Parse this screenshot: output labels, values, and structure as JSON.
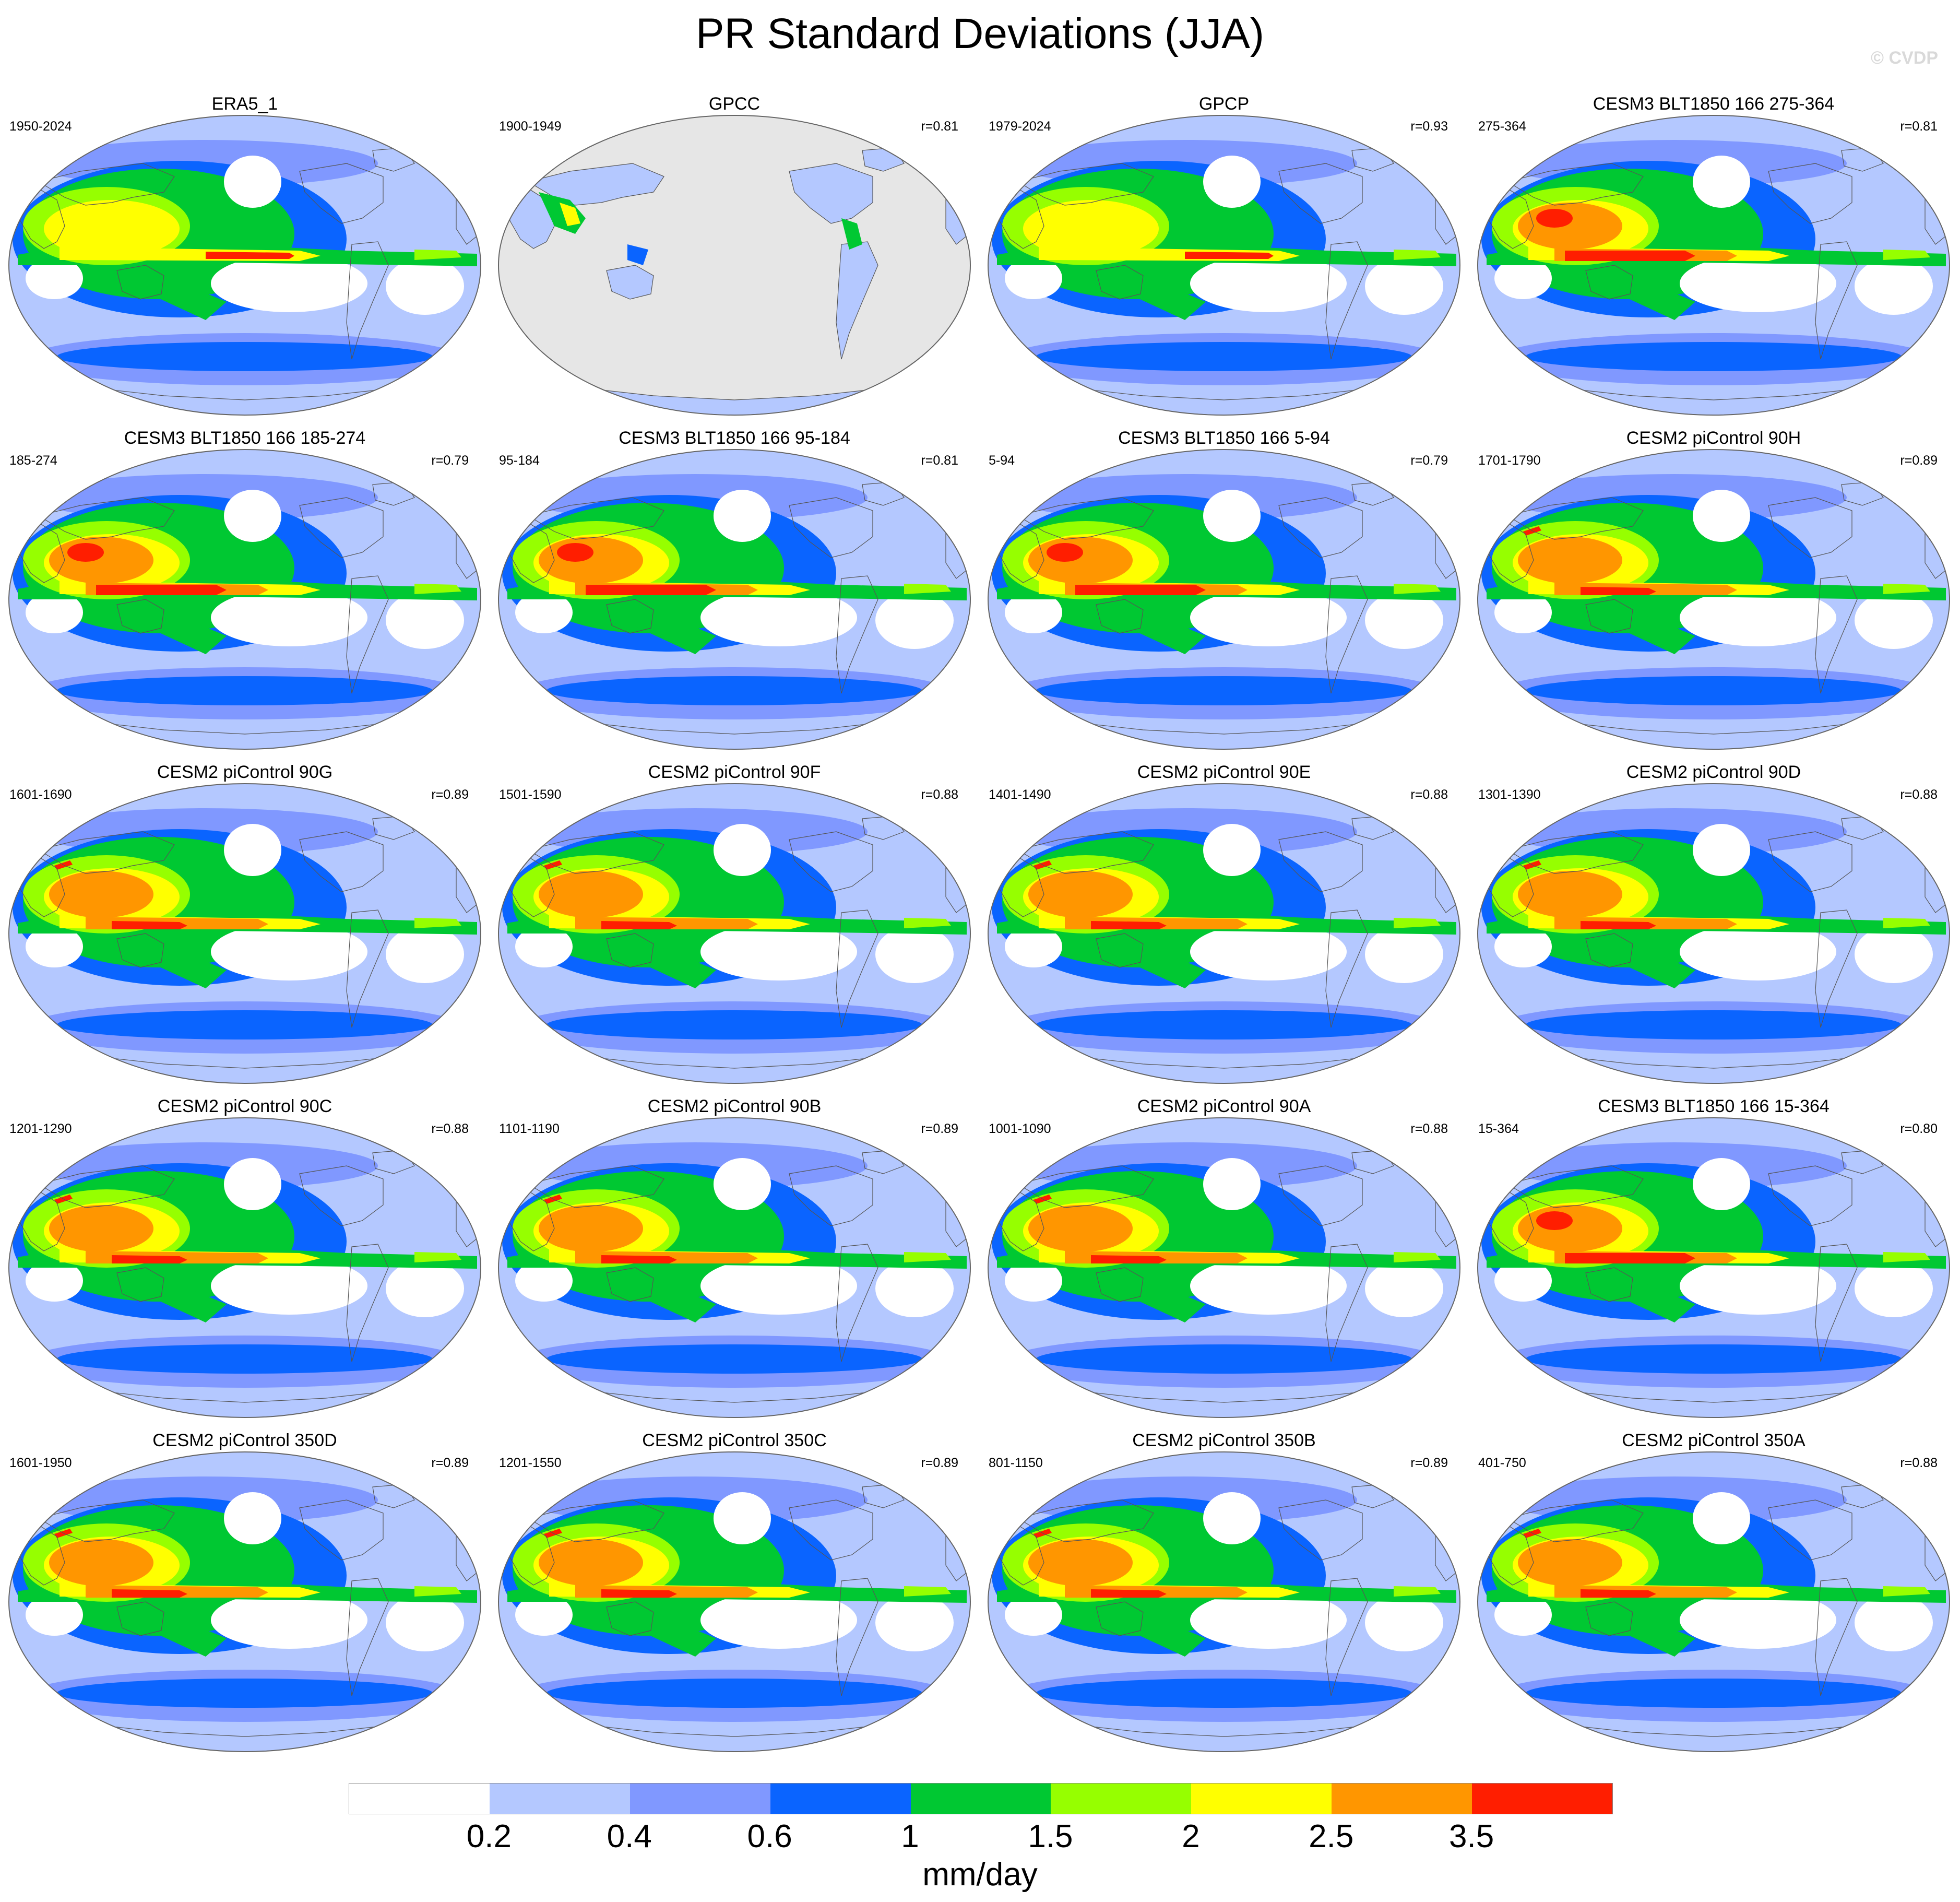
{
  "title": "PR Standard Deviations (JJA)",
  "watermark": "© CVDP",
  "panels": [
    {
      "title": "ERA5_1",
      "years": "1950-2024",
      "r": "",
      "kind": "obs"
    },
    {
      "title": "GPCC",
      "years": "1900-1949",
      "r": "r=0.81",
      "kind": "land"
    },
    {
      "title": "GPCP",
      "years": "1979-2024",
      "r": "r=0.93",
      "kind": "obs"
    },
    {
      "title": "CESM3 BLT1850 166 275-364",
      "years": "275-364",
      "r": "r=0.81",
      "kind": "model3"
    },
    {
      "title": "CESM3 BLT1850 166 185-274",
      "years": "185-274",
      "r": "r=0.79",
      "kind": "model3"
    },
    {
      "title": "CESM3 BLT1850 166 95-184",
      "years": "95-184",
      "r": "r=0.81",
      "kind": "model3"
    },
    {
      "title": "CESM3 BLT1850 166 5-94",
      "years": "5-94",
      "r": "r=0.79",
      "kind": "model3"
    },
    {
      "title": "CESM2 piControl 90H",
      "years": "1701-1790",
      "r": "r=0.89",
      "kind": "model2"
    },
    {
      "title": "CESM2 piControl 90G",
      "years": "1601-1690",
      "r": "r=0.89",
      "kind": "model2"
    },
    {
      "title": "CESM2 piControl 90F",
      "years": "1501-1590",
      "r": "r=0.88",
      "kind": "model2"
    },
    {
      "title": "CESM2 piControl 90E",
      "years": "1401-1490",
      "r": "r=0.88",
      "kind": "model2"
    },
    {
      "title": "CESM2 piControl 90D",
      "years": "1301-1390",
      "r": "r=0.88",
      "kind": "model2"
    },
    {
      "title": "CESM2 piControl 90C",
      "years": "1201-1290",
      "r": "r=0.88",
      "kind": "model2"
    },
    {
      "title": "CESM2 piControl 90B",
      "years": "1101-1190",
      "r": "r=0.89",
      "kind": "model2"
    },
    {
      "title": "CESM2 piControl 90A",
      "years": "1001-1090",
      "r": "r=0.88",
      "kind": "model2"
    },
    {
      "title": "CESM3 BLT1850 166 15-364",
      "years": "15-364",
      "r": "r=0.80",
      "kind": "model3"
    },
    {
      "title": "CESM2 piControl 350D",
      "years": "1601-1950",
      "r": "r=0.89",
      "kind": "model2"
    },
    {
      "title": "CESM2 piControl 350C",
      "years": "1201-1550",
      "r": "r=0.89",
      "kind": "model2"
    },
    {
      "title": "CESM2 piControl 350B",
      "years": "801-1150",
      "r": "r=0.89",
      "kind": "model2"
    },
    {
      "title": "CESM2 piControl 350A",
      "years": "401-750",
      "r": "r=0.88",
      "kind": "model2"
    }
  ],
  "colorbar": {
    "colors": [
      "#ffffff",
      "#b4c8ff",
      "#8098ff",
      "#0a64ff",
      "#00c832",
      "#96ff00",
      "#ffff00",
      "#ff9600",
      "#ff1e00"
    ],
    "labels": [
      "0.2",
      "0.4",
      "0.6",
      "1",
      "1.5",
      "2",
      "2.5",
      "3.5"
    ],
    "units": "mm/day"
  },
  "land_mask_color": "#e6e6e6"
}
